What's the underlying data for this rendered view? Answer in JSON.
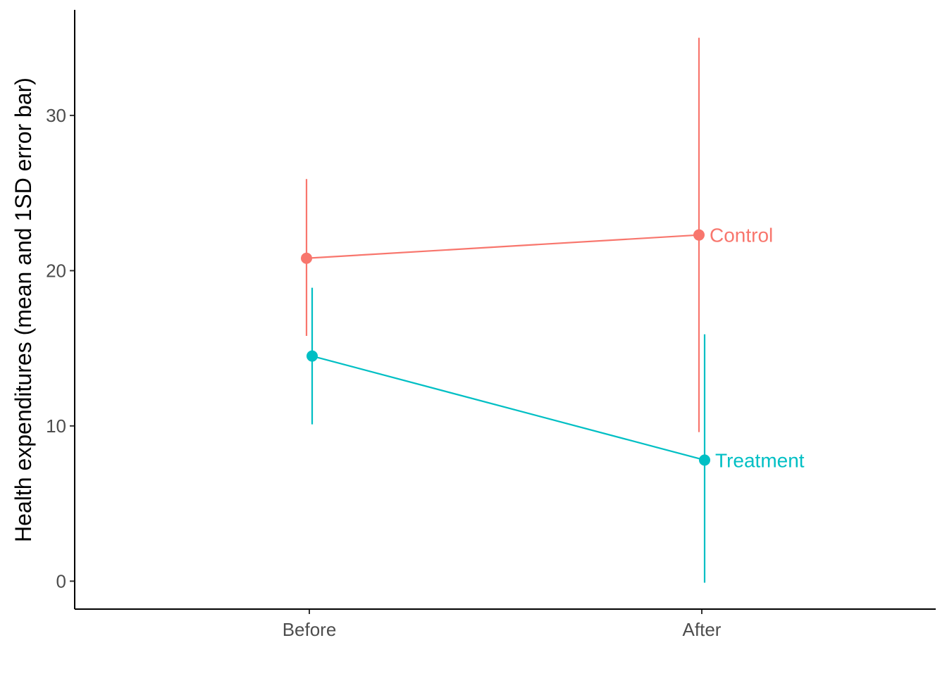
{
  "chart_data": {
    "type": "line",
    "title": "",
    "xlabel": "",
    "ylabel": "Health expenditures (mean and 1SD error bar)",
    "categories": [
      "Before",
      "After"
    ],
    "ylim": [
      -1.8,
      36.8
    ],
    "yticks": [
      0,
      10,
      20,
      30
    ],
    "grid": false,
    "legend": "none (direct labels at line ends)",
    "series": [
      {
        "name": "Control",
        "color": "#F8766D",
        "mean": [
          20.8,
          22.3
        ],
        "lower": [
          15.8,
          9.6
        ],
        "upper": [
          25.9,
          35.0
        ]
      },
      {
        "name": "Treatment",
        "color": "#00BFC4",
        "mean": [
          14.5,
          7.8
        ],
        "lower": [
          10.1,
          -0.1
        ],
        "upper": [
          18.9,
          15.9
        ]
      }
    ]
  }
}
